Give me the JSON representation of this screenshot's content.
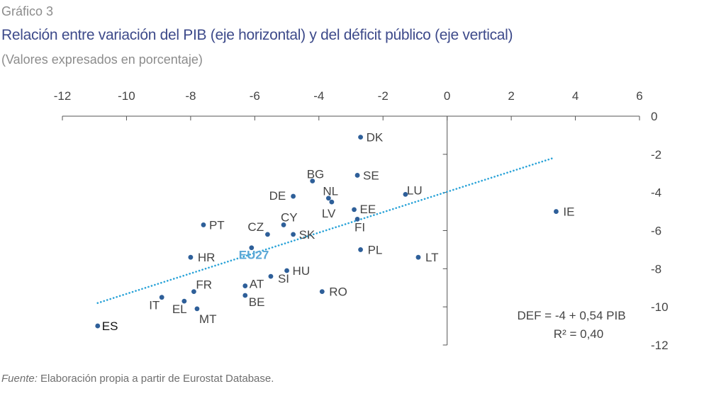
{
  "header": {
    "kicker": "Gráfico 3",
    "title": "Relación entre variación del PIB (eje horizontal) y del déficit público (eje vertical)",
    "subtitle": "(Valores expresados en porcentaje)"
  },
  "footer": {
    "source_label": "Fuente:",
    "source_text": " Elaboración propia a partir de Eurostat Database."
  },
  "chart_data": {
    "type": "scatter",
    "title": "Relación entre variación del PIB (eje horizontal) y del déficit público (eje vertical)",
    "xlabel": "",
    "ylabel": "",
    "xlim": [
      -12,
      6
    ],
    "ylim": [
      -12,
      0
    ],
    "xticks": [
      -12,
      -10,
      -8,
      -6,
      -4,
      -2,
      0,
      2,
      4,
      6
    ],
    "yticks": [
      0,
      -2,
      -4,
      -6,
      -8,
      -10,
      -12
    ],
    "x_axis_position": "top",
    "y_axis_position": "right",
    "grid": false,
    "colors": {
      "point": "#2e5f99",
      "trend": "#2aa3d8",
      "text": "#444444",
      "highlight": "#5ba7d6"
    },
    "points": [
      {
        "label": "DK",
        "x": -2.7,
        "y": -1.1
      },
      {
        "label": "SE",
        "x": -2.8,
        "y": -3.1
      },
      {
        "label": "BG",
        "x": -4.2,
        "y": -3.4
      },
      {
        "label": "NL",
        "x": -3.7,
        "y": -4.3
      },
      {
        "label": "LV",
        "x": -3.6,
        "y": -4.5
      },
      {
        "label": "DE",
        "x": -4.8,
        "y": -4.2
      },
      {
        "label": "LU",
        "x": -1.3,
        "y": -4.1
      },
      {
        "label": "EE",
        "x": -2.9,
        "y": -4.9
      },
      {
        "label": "FI",
        "x": -2.8,
        "y": -5.4
      },
      {
        "label": "IE",
        "x": 3.4,
        "y": -5.0
      },
      {
        "label": "PT",
        "x": -7.6,
        "y": -5.7
      },
      {
        "label": "CY",
        "x": -5.1,
        "y": -5.7
      },
      {
        "label": "CZ",
        "x": -5.6,
        "y": -6.2
      },
      {
        "label": "SK",
        "x": -4.8,
        "y": -6.2
      },
      {
        "label": "EU27",
        "x": -6.1,
        "y": -6.9
      },
      {
        "label": "PL",
        "x": -2.7,
        "y": -7.0
      },
      {
        "label": "LT",
        "x": -0.9,
        "y": -7.4
      },
      {
        "label": "HR",
        "x": -8.0,
        "y": -7.4
      },
      {
        "label": "HU",
        "x": -5.0,
        "y": -8.1
      },
      {
        "label": "SI",
        "x": -5.5,
        "y": -8.4
      },
      {
        "label": "AT",
        "x": -6.3,
        "y": -8.9
      },
      {
        "label": "FR",
        "x": -7.9,
        "y": -9.2
      },
      {
        "label": "BE",
        "x": -6.3,
        "y": -9.4
      },
      {
        "label": "RO",
        "x": -3.9,
        "y": -9.2
      },
      {
        "label": "IT",
        "x": -8.9,
        "y": -9.5
      },
      {
        "label": "EL",
        "x": -8.2,
        "y": -9.7
      },
      {
        "label": "MT",
        "x": -7.8,
        "y": -10.1
      },
      {
        "label": "ES",
        "x": -10.9,
        "y": -11.0
      }
    ],
    "trendline": {
      "x": [
        -10.9,
        3.3
      ],
      "y": [
        -9.8,
        -2.2
      ],
      "style": "dotted"
    },
    "annotation": {
      "line1": "DEF = -4 + 0,54 PIB",
      "line2": "R² = 0,40"
    }
  }
}
